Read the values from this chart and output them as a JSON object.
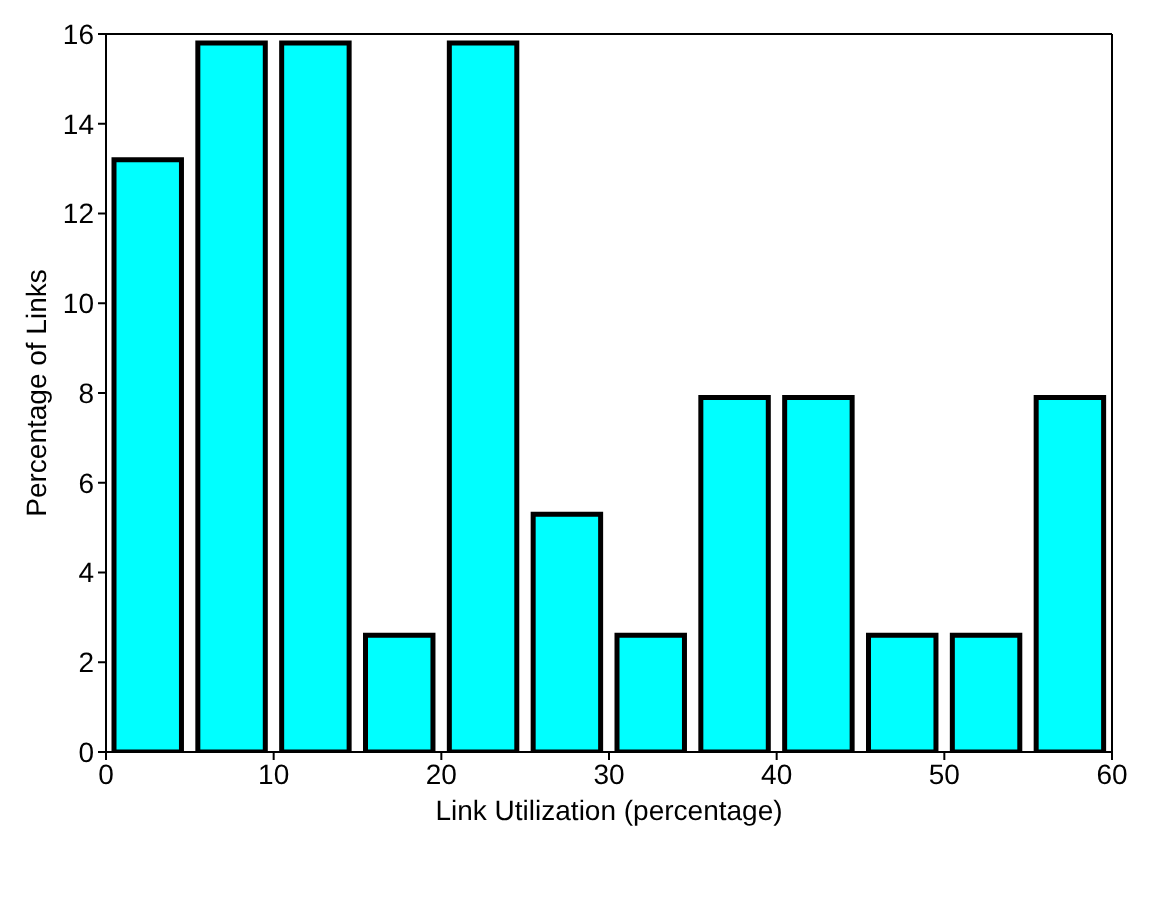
{
  "chart_data": {
    "type": "bar",
    "xlabel": "Link Utilization (percentage)",
    "ylabel": "Percentage of Links",
    "x": [
      2.5,
      7.5,
      12.5,
      17.5,
      22.5,
      27.5,
      32.5,
      37.5,
      42.5,
      47.5,
      52.5,
      57.5
    ],
    "values": [
      13.2,
      15.8,
      15.8,
      2.6,
      15.8,
      5.3,
      2.6,
      7.9,
      7.9,
      2.6,
      2.6,
      7.9
    ],
    "color": "#00ffff",
    "xlim": [
      0,
      60
    ],
    "xticks": [
      0,
      10,
      20,
      30,
      40,
      50,
      60
    ],
    "ylim": [
      0,
      16
    ],
    "yticks": [
      0,
      2,
      4,
      6,
      8,
      10,
      12,
      14,
      16
    ]
  }
}
